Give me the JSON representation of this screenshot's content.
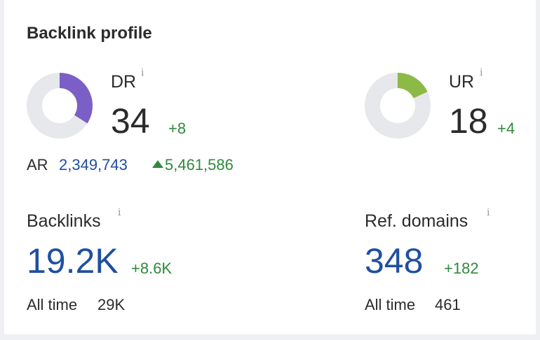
{
  "widget": {
    "title": "Backlink profile",
    "info_glyph": "i",
    "accent_colors": {
      "dr": "#7b5fc6",
      "ur": "#8cba46",
      "track": "#e6e8eb",
      "link": "#1f4fa0",
      "positive": "#2f8a3a"
    }
  },
  "dr": {
    "label": "DR",
    "value": "34",
    "delta": "+8",
    "fraction": 0.34
  },
  "ur": {
    "label": "UR",
    "value": "18",
    "delta": "+4",
    "fraction": 0.18
  },
  "ar": {
    "label": "AR",
    "value": "2,349,743",
    "change": "5,461,586",
    "change_icon": "triangle-up-icon"
  },
  "backlinks": {
    "label": "Backlinks",
    "value": "19.2K",
    "delta": "+8.6K",
    "all_time_label": "All time",
    "all_time_value": "29K"
  },
  "ref_domains": {
    "label": "Ref. domains",
    "value": "348",
    "delta": "+182",
    "all_time_label": "All time",
    "all_time_value": "461"
  }
}
